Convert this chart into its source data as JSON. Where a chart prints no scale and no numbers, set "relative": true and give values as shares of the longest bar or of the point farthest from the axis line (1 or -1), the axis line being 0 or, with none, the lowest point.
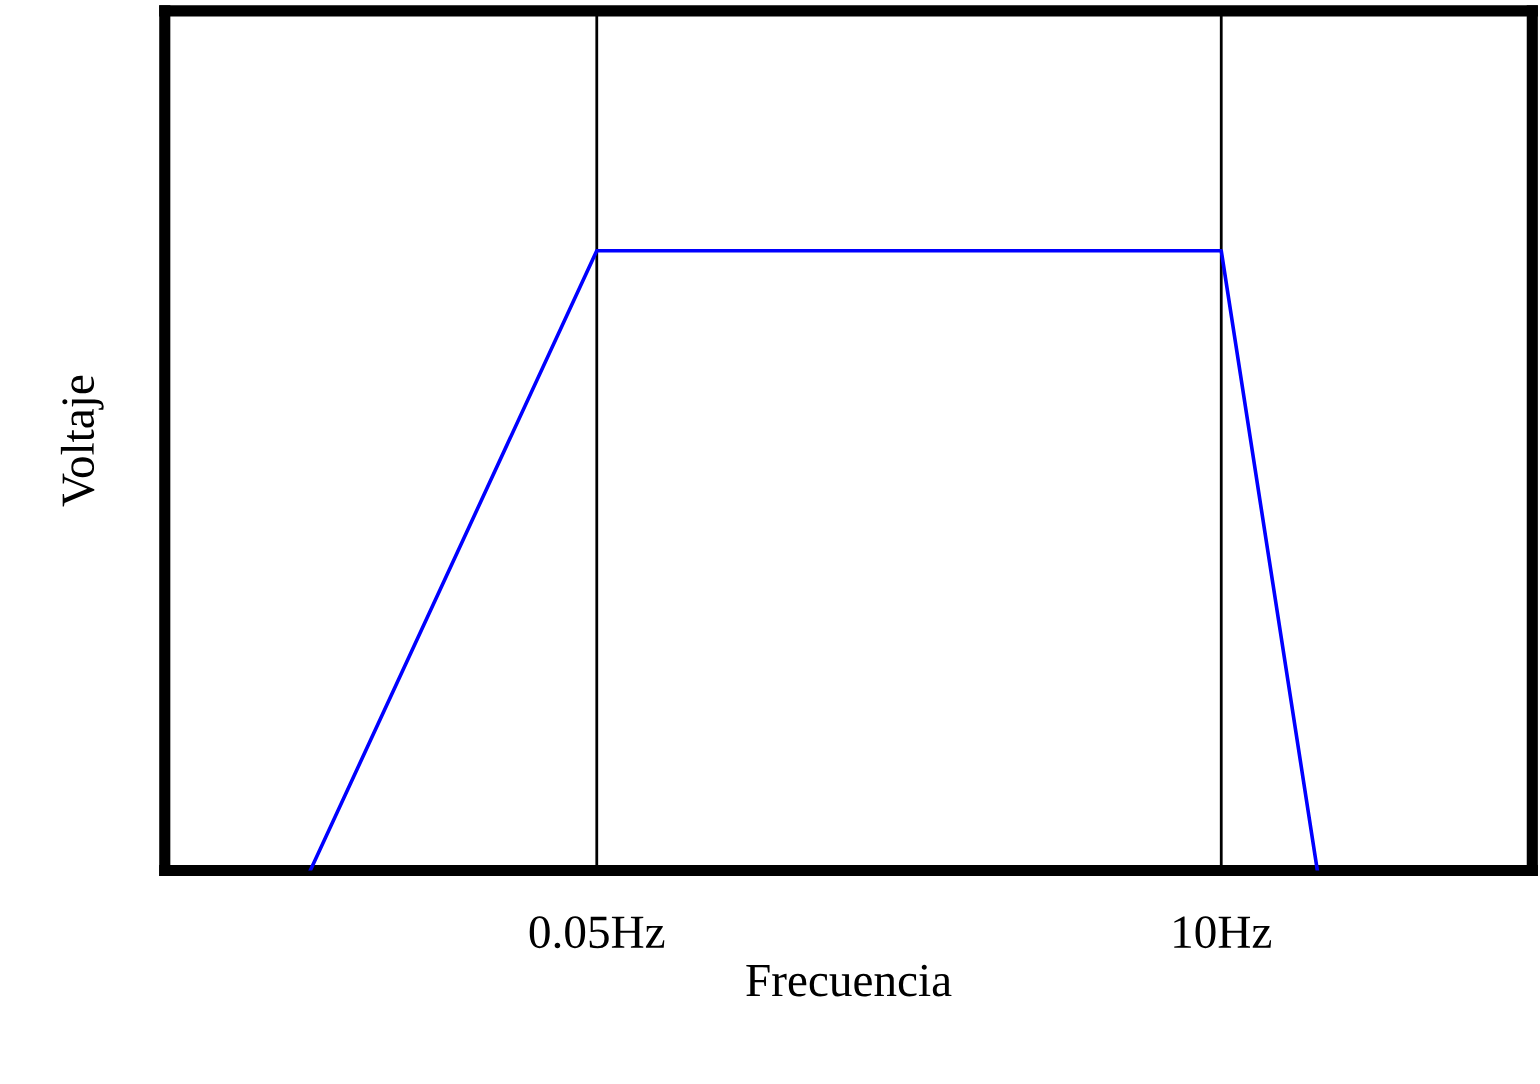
{
  "chart_data": {
    "type": "line",
    "relative": true,
    "xlabel": "Frecuencia",
    "ylabel": "Voltaje",
    "log": "x",
    "x": [
      0.0044,
      0.05,
      10,
      22.6
    ],
    "series": [
      {
        "color": "#0000ff",
        "values": [
          0,
          1,
          1,
          0
        ]
      }
    ],
    "xlim": [
      0.00128,
      140
    ],
    "xticks": [
      {
        "value": 0.05,
        "label": "0.05Hz"
      },
      {
        "value": 10,
        "label": "10Hz"
      }
    ],
    "grid": "x",
    "marker": "none",
    "line_style": "solid",
    "tick_labels": "x"
  }
}
